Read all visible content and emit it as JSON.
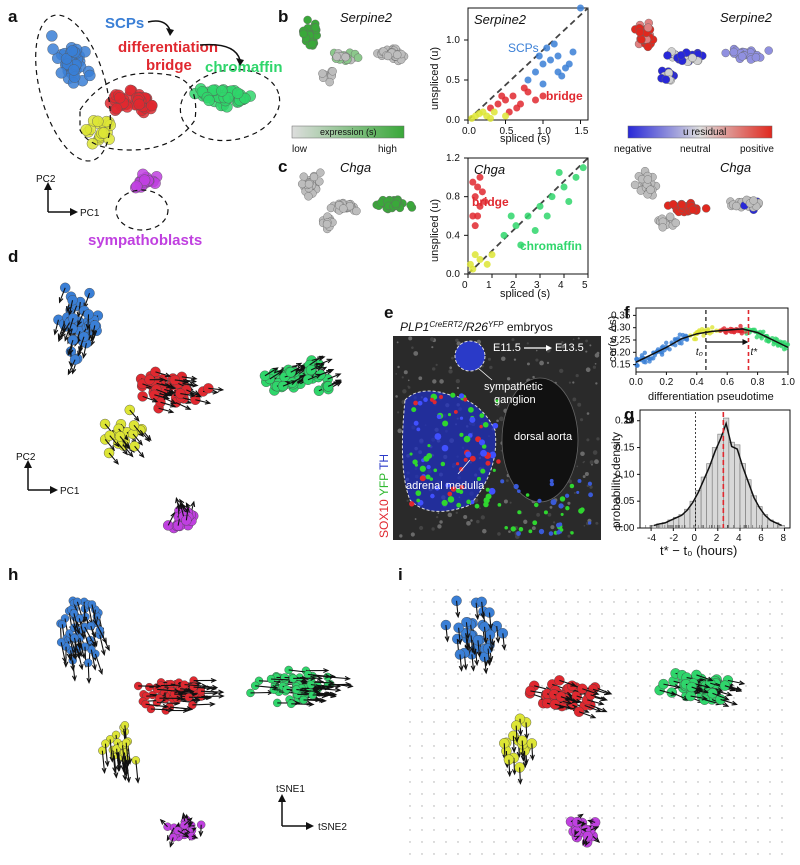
{
  "panels": {
    "a": {
      "label": "a",
      "groups": {
        "scps": "SCPs",
        "bridge_1": "differentiation",
        "bridge_2": "bridge",
        "chromaffin": "chromaffin",
        "sympathoblasts": "sympathoblasts"
      },
      "axes": {
        "pc1": "PC1",
        "pc2": "PC2"
      }
    },
    "b": {
      "label": "b",
      "gene": "Serpine2",
      "legend_title": "expression (s)",
      "legend_low": "low",
      "legend_high": "high"
    },
    "c": {
      "label": "c",
      "gene": "Chga"
    },
    "residual": {
      "legend_title": "u residual",
      "negative": "negative",
      "neutral": "neutral",
      "positive": "positive"
    },
    "d": {
      "label": "d",
      "pc1": "PC1",
      "pc2": "PC2"
    },
    "e": {
      "label": "e",
      "title": "PLP1CreERT2/R26YFP embryos",
      "title_main": "PLP1",
      "title_sup1": "CreERT2",
      "title_mid": "/R26",
      "title_sup2": "YFP",
      "title_end": " embryos",
      "time_from": "E11.5",
      "time_to": "E13.5",
      "ann_ganglion_1": "sympathetic",
      "ann_ganglion_2": "ganglion",
      "ann_aorta": "dorsal aorta",
      "ann_medulla": "adrenal medulla",
      "stain_sox10": "SOX10",
      "stain_yfp": "YFP",
      "stain_th": "TH"
    },
    "f": {
      "label": "f",
      "xlabel": "differentiation pseudotime",
      "ylabel": "cor(v, Δs)",
      "t0": "t₀",
      "tstar": "t*"
    },
    "g": {
      "label": "g",
      "xlabel": "t* − t₀ (hours)",
      "ylabel": "probability density"
    },
    "h": {
      "label": "h",
      "tsne1": "tSNE1",
      "tsne2": "tSNE2"
    },
    "i": {
      "label": "i"
    }
  },
  "colors": {
    "scps": "#3a7fd6",
    "bridge": "#e0282f",
    "chromaffin": "#2fd66b",
    "yellow": "#dde535",
    "sympathoblasts": "#c040e0",
    "grey": "#bdbdbd",
    "expr_green": "#3aa83a",
    "residual_neg": "#2828d8",
    "residual_pos": "#e0281e"
  },
  "chart_data": [
    {
      "type": "scatter",
      "panel": "b",
      "title": "Serpine2",
      "xlabel": "spliced (s)",
      "ylabel": "unspliced (u)",
      "xlim": [
        0,
        1.6
      ],
      "ylim": [
        0,
        1.4
      ],
      "xticks": [
        0.0,
        0.5,
        1.0,
        1.5
      ],
      "yticks": [
        0.0,
        0.5,
        1.0
      ],
      "annotations": [
        "SCPs",
        "bridge"
      ],
      "series": [
        {
          "name": "SCPs",
          "points": [
            [
              0.9,
              0.6
            ],
            [
              1.0,
              0.7
            ],
            [
              1.1,
              0.75
            ],
            [
              1.2,
              0.8
            ],
            [
              1.3,
              0.65
            ],
            [
              1.0,
              0.45
            ],
            [
              0.8,
              0.5
            ],
            [
              1.15,
              0.95
            ],
            [
              1.4,
              0.85
            ],
            [
              1.25,
              0.55
            ],
            [
              0.95,
              0.8
            ],
            [
              1.05,
              0.9
            ],
            [
              1.35,
              0.7
            ],
            [
              1.5,
              1.4
            ],
            [
              1.2,
              0.6
            ]
          ]
        },
        {
          "name": "bridge",
          "points": [
            [
              0.3,
              0.15
            ],
            [
              0.4,
              0.2
            ],
            [
              0.5,
              0.25
            ],
            [
              0.6,
              0.3
            ],
            [
              0.7,
              0.2
            ],
            [
              0.8,
              0.35
            ],
            [
              0.55,
              0.1
            ],
            [
              0.9,
              0.25
            ],
            [
              1.0,
              0.3
            ],
            [
              0.45,
              0.3
            ],
            [
              0.65,
              0.15
            ],
            [
              0.75,
              0.4
            ]
          ]
        },
        {
          "name": "",
          "points": [
            [
              0.1,
              0.05
            ],
            [
              0.2,
              0.1
            ],
            [
              0.25,
              0.05
            ],
            [
              0.15,
              0.08
            ],
            [
              0.35,
              0.1
            ],
            [
              0.05,
              0.02
            ],
            [
              0.5,
              0.05
            ],
            [
              0.3,
              0.02
            ]
          ]
        }
      ]
    },
    {
      "type": "scatter",
      "panel": "c",
      "title": "Chga",
      "xlabel": "spliced (s)",
      "ylabel": "unspliced (u)",
      "xlim": [
        0,
        5
      ],
      "ylim": [
        0,
        1.2
      ],
      "xticks": [
        0,
        1,
        2,
        3,
        4,
        5
      ],
      "yticks": [
        0.0,
        0.4,
        0.8,
        1.2
      ],
      "annotations": [
        "bridge",
        "chromaffin"
      ],
      "series": [
        {
          "name": "bridge",
          "points": [
            [
              0.2,
              0.6
            ],
            [
              0.3,
              0.8
            ],
            [
              0.4,
              0.9
            ],
            [
              0.5,
              0.7
            ],
            [
              0.3,
              0.5
            ],
            [
              0.6,
              0.85
            ],
            [
              0.2,
              0.95
            ],
            [
              0.4,
              0.6
            ],
            [
              0.7,
              0.75
            ],
            [
              0.5,
              1.0
            ]
          ]
        },
        {
          "name": "chromaffin",
          "points": [
            [
              1.5,
              0.4
            ],
            [
              2.0,
              0.5
            ],
            [
              2.5,
              0.6
            ],
            [
              3.0,
              0.7
            ],
            [
              3.5,
              0.8
            ],
            [
              4.0,
              0.9
            ],
            [
              4.5,
              1.0
            ],
            [
              2.8,
              0.45
            ],
            [
              3.3,
              0.6
            ],
            [
              4.2,
              0.75
            ],
            [
              1.8,
              0.6
            ],
            [
              2.2,
              0.3
            ],
            [
              3.8,
              1.05
            ],
            [
              4.8,
              1.1
            ]
          ]
        },
        {
          "name": "",
          "points": [
            [
              0.1,
              0.1
            ],
            [
              0.2,
              0.05
            ],
            [
              0.3,
              0.2
            ],
            [
              0.5,
              0.15
            ],
            [
              0.8,
              0.1
            ],
            [
              1.0,
              0.2
            ]
          ]
        }
      ]
    },
    {
      "type": "scatter",
      "panel": "f",
      "xlabel": "differentiation pseudotime",
      "ylabel": "cor(v, Δs)",
      "xlim": [
        0,
        1
      ],
      "ylim": [
        0.12,
        0.38
      ],
      "xticks": [
        0.0,
        0.2,
        0.4,
        0.6,
        0.8,
        1.0
      ],
      "yticks": [
        0.15,
        0.2,
        0.25,
        0.3,
        0.35
      ],
      "t0": 0.46,
      "tstar": 0.74,
      "curve": [
        [
          0.0,
          0.16
        ],
        [
          0.1,
          0.19
        ],
        [
          0.2,
          0.22
        ],
        [
          0.3,
          0.255
        ],
        [
          0.4,
          0.275
        ],
        [
          0.5,
          0.285
        ],
        [
          0.6,
          0.29
        ],
        [
          0.7,
          0.295
        ],
        [
          0.8,
          0.28
        ],
        [
          0.9,
          0.25
        ],
        [
          1.0,
          0.22
        ]
      ]
    },
    {
      "type": "bar",
      "panel": "g",
      "xlabel": "t* − t₀ (hours)",
      "ylabel": "probability density",
      "xlim": [
        -5,
        8.5
      ],
      "ylim": [
        0,
        0.22
      ],
      "xticks": [
        -4,
        -2,
        0,
        2,
        4,
        6,
        8
      ],
      "yticks": [
        0.0,
        0.05,
        0.1,
        0.15,
        0.2
      ],
      "bin_edges": [
        -4,
        -3.5,
        -3,
        -2.5,
        -2,
        -1.5,
        -1,
        -0.5,
        0,
        0.5,
        1,
        1.5,
        2,
        2.5,
        3,
        3.5,
        4,
        4.5,
        5,
        5.5,
        6,
        6.5,
        7,
        7.5,
        8
      ],
      "values": [
        0.005,
        0.008,
        0.01,
        0.015,
        0.02,
        0.025,
        0.035,
        0.05,
        0.07,
        0.095,
        0.12,
        0.15,
        0.175,
        0.205,
        0.16,
        0.155,
        0.12,
        0.09,
        0.06,
        0.04,
        0.025,
        0.015,
        0.01,
        0.005
      ],
      "mean_line": 2.5
    }
  ]
}
